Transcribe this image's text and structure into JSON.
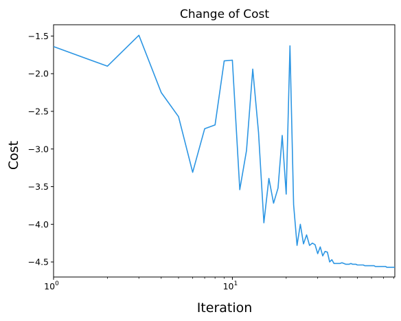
{
  "chart_data": {
    "type": "line",
    "title": "Change of Cost",
    "xlabel": "Iteration",
    "ylabel": "Cost",
    "xscale": "log",
    "xlim": [
      1,
      81
    ],
    "ylim": [
      -4.7,
      -1.35
    ],
    "grid": false,
    "line_color": "#2b95e3",
    "x_ticks": [
      {
        "value": 1,
        "base": "10",
        "exp": "0"
      },
      {
        "value": 10,
        "base": "10",
        "exp": "1"
      }
    ],
    "y_ticks": [
      {
        "value": -1.5,
        "label": "−1.5"
      },
      {
        "value": -2.0,
        "label": "−2.0"
      },
      {
        "value": -2.5,
        "label": "−2.5"
      },
      {
        "value": -3.0,
        "label": "−3.0"
      },
      {
        "value": -3.5,
        "label": "−3.5"
      },
      {
        "value": -4.0,
        "label": "−4.0"
      },
      {
        "value": -4.5,
        "label": "−4.5"
      }
    ],
    "x": [
      1,
      2,
      3,
      4,
      5,
      6,
      7,
      8,
      9,
      10,
      11,
      12,
      13,
      14,
      15,
      16,
      17,
      18,
      19,
      20,
      21,
      22,
      23,
      24,
      25,
      26,
      27,
      28,
      29,
      30,
      31,
      32,
      33,
      34,
      35,
      36,
      37,
      38,
      39,
      40,
      41,
      42,
      43,
      44,
      45,
      46,
      47,
      48,
      49,
      50,
      51,
      52,
      53,
      54,
      55,
      56,
      57,
      58,
      59,
      60,
      61,
      62,
      63,
      64,
      65,
      66,
      67,
      68,
      69,
      70,
      71,
      72,
      73,
      74,
      75,
      76,
      77,
      78,
      79,
      80,
      81
    ],
    "y": [
      -1.64,
      -1.9,
      -1.49,
      -2.25,
      -2.57,
      -3.31,
      -2.73,
      -2.68,
      -1.83,
      -1.82,
      -3.54,
      -3.02,
      -1.94,
      -2.78,
      -3.98,
      -3.39,
      -3.72,
      -3.52,
      -2.82,
      -3.6,
      -1.63,
      -3.74,
      -4.28,
      -4.0,
      -4.26,
      -4.14,
      -4.28,
      -4.25,
      -4.27,
      -4.39,
      -4.3,
      -4.42,
      -4.36,
      -4.37,
      -4.5,
      -4.47,
      -4.52,
      -4.52,
      -4.52,
      -4.52,
      -4.51,
      -4.52,
      -4.53,
      -4.53,
      -4.53,
      -4.52,
      -4.53,
      -4.53,
      -4.53,
      -4.54,
      -4.54,
      -4.54,
      -4.54,
      -4.54,
      -4.55,
      -4.55,
      -4.55,
      -4.55,
      -4.55,
      -4.55,
      -4.55,
      -4.55,
      -4.56,
      -4.56,
      -4.56,
      -4.56,
      -4.56,
      -4.56,
      -4.56,
      -4.56,
      -4.56,
      -4.56,
      -4.57,
      -4.57,
      -4.57,
      -4.57,
      -4.57,
      -4.57,
      -4.57,
      -4.57,
      -4.57
    ]
  }
}
